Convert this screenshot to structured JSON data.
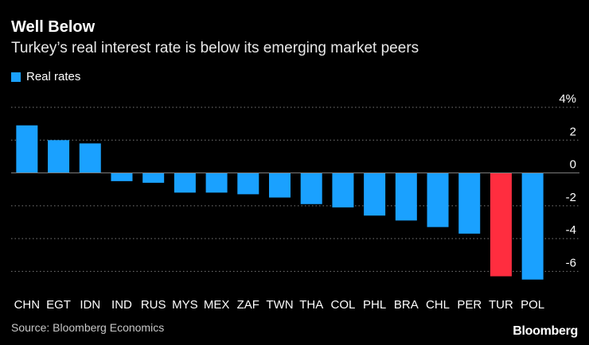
{
  "header": {
    "title": "Well Below",
    "subtitle": "Turkey’s real interest rate is below its emerging market peers"
  },
  "legend": {
    "label": "Real rates",
    "color": "#1aa1ff"
  },
  "footer": {
    "source": "Source: Bloomberg Economics",
    "brand": "Bloomberg"
  },
  "colors": {
    "bar": "#1aa1ff",
    "highlight": "#ff2d3f",
    "grid": "#7a7a7a",
    "background": "#000000"
  },
  "chart_data": {
    "type": "bar",
    "title": "Well Below",
    "subtitle": "Turkey’s real interest rate is below its emerging market peers",
    "xlabel": "",
    "ylabel": "",
    "categories": [
      "CHN",
      "EGT",
      "IDN",
      "IND",
      "RUS",
      "MYS",
      "MEX",
      "ZAF",
      "TWN",
      "THA",
      "COL",
      "PHL",
      "BRA",
      "CHL",
      "PER",
      "TUR",
      "POL"
    ],
    "series": [
      {
        "name": "Real rates",
        "values": [
          2.9,
          2.0,
          1.8,
          -0.5,
          -0.6,
          -1.2,
          -1.2,
          -1.3,
          -1.5,
          -1.9,
          -2.1,
          -2.6,
          -2.9,
          -3.3,
          -3.7,
          -6.3,
          -6.5
        ]
      }
    ],
    "highlight": "TUR",
    "ylim": [
      -7,
      4
    ],
    "yticks": [
      4,
      2,
      0,
      -2,
      -4,
      -6
    ],
    "ytick_labels": [
      "4%",
      "2",
      "0",
      "-2",
      "-4",
      "-6"
    ],
    "y_axis_side": "right",
    "grid": true,
    "legend_position": "top-left"
  }
}
